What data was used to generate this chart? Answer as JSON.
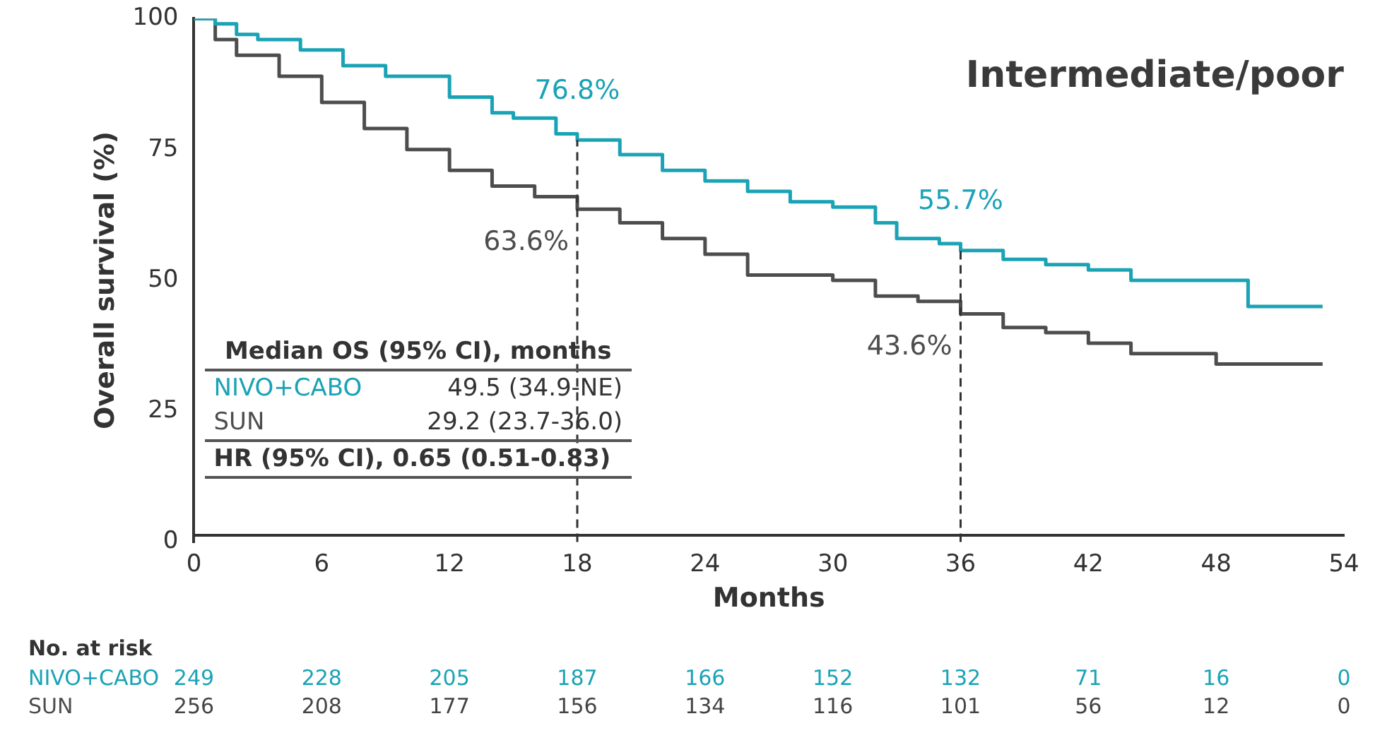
{
  "chart_data": {
    "type": "step",
    "title": "Intermediate/poor",
    "xlabel": "Months",
    "ylabel": "Overall survival (%)",
    "xlim": [
      0,
      54
    ],
    "xticks": [
      0,
      6,
      12,
      18,
      24,
      30,
      36,
      42,
      48,
      54
    ],
    "ylim": [
      0,
      100
    ],
    "yticks": [
      0,
      25,
      50,
      75,
      100
    ],
    "grid": false,
    "legend": false,
    "series": [
      {
        "name": "NIVO+CABO",
        "color": "#1aa3b5",
        "x": [
          0,
          1,
          2,
          3,
          5,
          7,
          9,
          12,
          14,
          15,
          17,
          18,
          20,
          22,
          24,
          26,
          28,
          30,
          32,
          33,
          35,
          36,
          38,
          40,
          42,
          44,
          49.5,
          53
        ],
        "values": [
          100,
          99,
          97,
          96,
          94,
          91,
          89,
          85,
          82,
          81,
          78,
          76.8,
          74,
          71,
          69,
          67,
          65,
          64,
          61,
          58,
          57,
          55.7,
          54,
          53,
          52,
          50,
          45,
          45
        ],
        "value_labels": [
          null,
          null,
          null,
          null,
          null,
          null,
          null,
          null,
          null,
          null,
          null,
          "76.8%",
          null,
          null,
          null,
          null,
          null,
          null,
          null,
          null,
          null,
          "55.7%",
          null,
          null,
          null,
          null,
          null,
          null
        ]
      },
      {
        "name": "SUN",
        "color": "#4d4d4d",
        "x": [
          0,
          1,
          2,
          4,
          6,
          8,
          10,
          12,
          14,
          16,
          18,
          20,
          22,
          24,
          26,
          30,
          32,
          34,
          36,
          38,
          40,
          42,
          44,
          48,
          53
        ],
        "values": [
          100,
          96,
          93,
          89,
          84,
          79,
          75,
          71,
          68,
          66,
          63.6,
          61,
          58,
          55,
          51,
          50,
          47,
          46,
          43.6,
          41,
          40,
          38,
          36,
          34,
          34
        ],
        "value_labels": [
          null,
          null,
          null,
          null,
          null,
          null,
          null,
          null,
          null,
          null,
          "63.6%",
          null,
          null,
          null,
          null,
          null,
          null,
          null,
          "43.6%",
          null,
          null,
          null,
          null,
          null,
          null
        ]
      }
    ],
    "ref_lines": [
      {
        "axis": "x",
        "value": 18,
        "color": "#333333",
        "line_style": "dashed"
      },
      {
        "axis": "x",
        "value": 36,
        "color": "#333333",
        "line_style": "dashed"
      }
    ],
    "annotations": [
      "Median OS (95% CI), months",
      "49.5 (34.9-NE)",
      "29.2 (23.7-36.0)",
      "HR (95% CI), 0.65 (0.51-0.83)",
      "No. at risk",
      "249",
      "228",
      "205",
      "187",
      "166",
      "152",
      "132",
      "71",
      "16",
      "0",
      "256",
      "208",
      "177",
      "156",
      "134",
      "116",
      "101",
      "56",
      "12",
      "0"
    ]
  }
}
